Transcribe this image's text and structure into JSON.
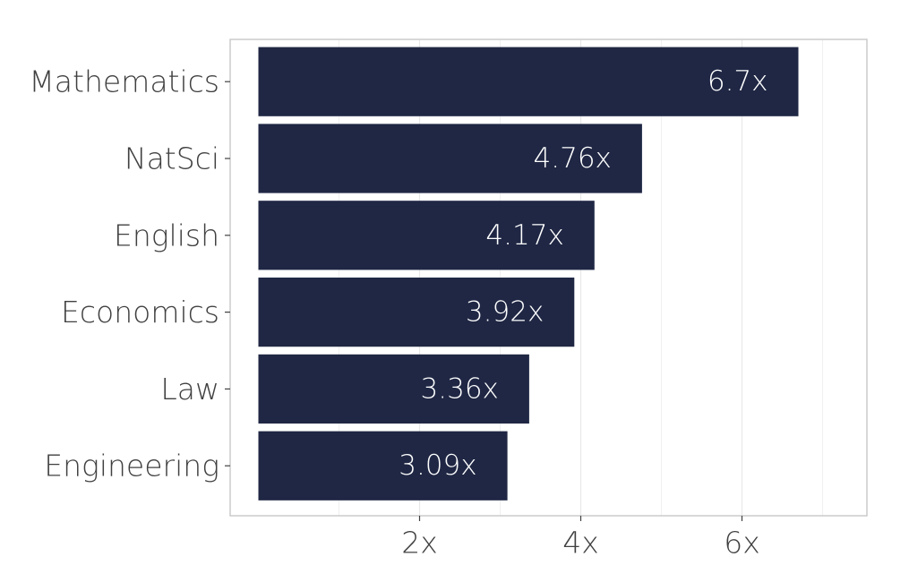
{
  "chart_data": {
    "type": "bar",
    "orientation": "horizontal",
    "categories": [
      "Mathematics",
      "NatSci",
      "English",
      "Economics",
      "Law",
      "Engineering"
    ],
    "values": [
      6.7,
      4.76,
      4.17,
      3.92,
      3.36,
      3.09
    ],
    "data_labels": [
      "6.7x",
      "4.76x",
      "4.17x",
      "3.92x",
      "3.36x",
      "3.09x"
    ],
    "xaxis": {
      "ticks": [
        2,
        4,
        6
      ],
      "tick_labels": [
        "2x",
        "4x",
        "6x"
      ],
      "minor_ticks": [
        1,
        3,
        5,
        7
      ],
      "range": [
        -0.35,
        7.55
      ]
    },
    "title": "",
    "xlabel": "",
    "ylabel": "",
    "grid": true,
    "legend": "none",
    "colors": {
      "bar": "#1f2744",
      "grid": "#e8e8e8",
      "panel_border": "#c8c8c8",
      "text": "#404040",
      "data_label": "#ffffff"
    }
  }
}
